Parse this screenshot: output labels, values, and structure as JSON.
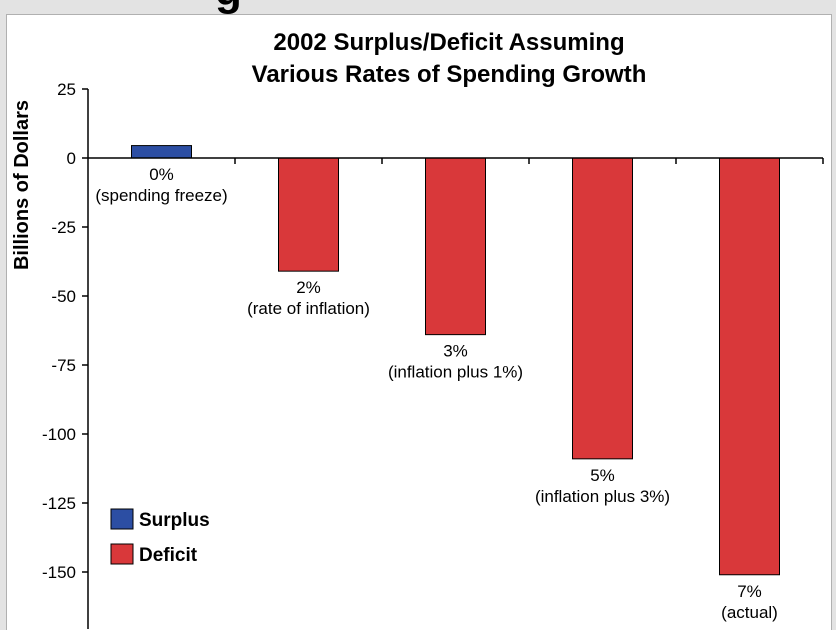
{
  "chart_data": {
    "type": "bar",
    "title": [
      "2002 Surplus/Deficit Assuming",
      "Various Rates of Spending Growth"
    ],
    "ylabel": "Billions of Dollars",
    "xlabel": "",
    "ylim": [
      -170,
      25
    ],
    "yticks": [
      25,
      0,
      -25,
      -50,
      -75,
      -100,
      -125,
      -150
    ],
    "categories": [
      [
        "0%",
        "(spending freeze)"
      ],
      [
        "2%",
        "(rate of inflation)"
      ],
      [
        "3%",
        "(inflation plus 1%)"
      ],
      [
        "5%",
        "(inflation plus 3%)"
      ],
      [
        "7%",
        "(actual)"
      ]
    ],
    "values": [
      4.5,
      -41,
      -64,
      -109,
      -151
    ],
    "legend": {
      "placement": "bottom-left",
      "items": [
        {
          "label": "Surplus",
          "color": "#2c4ea3"
        },
        {
          "label": "Deficit",
          "color": "#d9383a"
        }
      ]
    },
    "colors": {
      "surplus": "#2c4ea3",
      "deficit": "#d9383a"
    },
    "grid": false
  },
  "partial_heading_fragment": "g"
}
